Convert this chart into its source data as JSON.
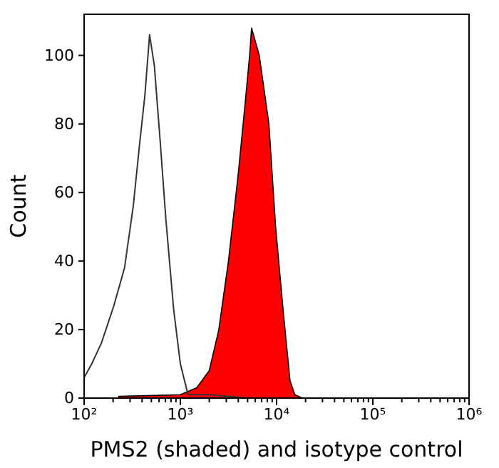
{
  "chart_data": {
    "type": "area",
    "xlabel": "PMS2 (shaded) and isotype control",
    "ylabel": "Count",
    "log": "x",
    "xlim": [
      100,
      1000000
    ],
    "ylim": [
      0,
      112
    ],
    "xticks": [
      {
        "value": 100,
        "label": "10²"
      },
      {
        "value": 200,
        "label": null
      },
      {
        "value": 300,
        "label": null
      },
      {
        "value": 400,
        "label": null
      },
      {
        "value": 500,
        "label": null
      },
      {
        "value": 600,
        "label": null
      },
      {
        "value": 700,
        "label": null
      },
      {
        "value": 800,
        "label": null
      },
      {
        "value": 900,
        "label": null
      },
      {
        "value": 1000,
        "label": "10³"
      },
      {
        "value": 2000,
        "label": null
      },
      {
        "value": 3000,
        "label": null
      },
      {
        "value": 4000,
        "label": null
      },
      {
        "value": 5000,
        "label": null
      },
      {
        "value": 6000,
        "label": null
      },
      {
        "value": 7000,
        "label": null
      },
      {
        "value": 8000,
        "label": null
      },
      {
        "value": 9000,
        "label": null
      },
      {
        "value": 10000,
        "label": "10⁴"
      },
      {
        "value": 20000,
        "label": null
      },
      {
        "value": 30000,
        "label": null
      },
      {
        "value": 40000,
        "label": null
      },
      {
        "value": 50000,
        "label": null
      },
      {
        "value": 60000,
        "label": null
      },
      {
        "value": 70000,
        "label": null
      },
      {
        "value": 80000,
        "label": null
      },
      {
        "value": 90000,
        "label": null
      },
      {
        "value": 100000,
        "label": "10⁵"
      },
      {
        "value": 200000,
        "label": null
      },
      {
        "value": 300000,
        "label": null
      },
      {
        "value": 400000,
        "label": null
      },
      {
        "value": 500000,
        "label": null
      },
      {
        "value": 600000,
        "label": null
      },
      {
        "value": 700000,
        "label": null
      },
      {
        "value": 800000,
        "label": null
      },
      {
        "value": 900000,
        "label": null
      },
      {
        "value": 1000000,
        "label": "10⁶"
      }
    ],
    "yticks": [
      0,
      20,
      40,
      60,
      80,
      100
    ],
    "grid": false,
    "series": [
      {
        "color": "#ff0000",
        "x": [
          229,
          1000,
          1479,
          1995,
          2512,
          3162,
          3981,
          4677,
          5248,
          5495,
          6607,
          7413,
          8318,
          9772,
          11749,
          13804,
          15488,
          18621
        ],
        "values": [
          0.5,
          1,
          3,
          8,
          20,
          40,
          65,
          85,
          100,
          108,
          100,
          90,
          80,
          50,
          25,
          5,
          1,
          0
        ]
      },
      {
        "type": "line",
        "color": "#333333",
        "x": [
          100,
          120,
          151,
          204,
          263,
          324,
          380,
          427,
          479,
          537,
          617,
          708,
          851,
          1000,
          1202,
          1413,
          2000,
          5000,
          10000,
          20000,
          100000,
          1000000
        ],
        "values": [
          6,
          10,
          16,
          27,
          38,
          56,
          75,
          88,
          106,
          97,
          75,
          52,
          26,
          10,
          1,
          1,
          1,
          0,
          0,
          0,
          0,
          0
        ]
      }
    ]
  }
}
